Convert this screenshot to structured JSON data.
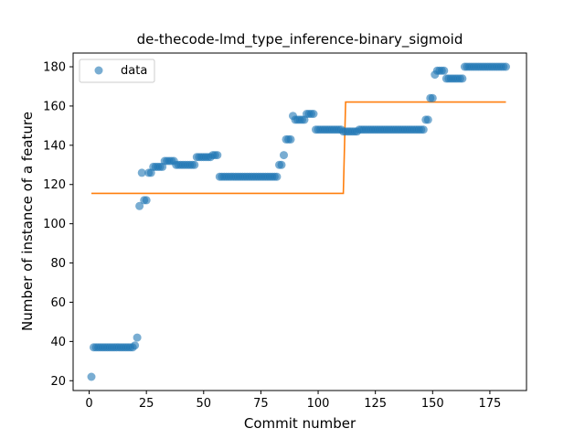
{
  "chart_data": {
    "type": "scatter",
    "title": "de-thecode-lmd_type_inference-binary_sigmoid",
    "xlabel": "Commit number",
    "ylabel": "Number of instance of a feature",
    "xlim": [
      -7,
      191
    ],
    "ylim": [
      15,
      187
    ],
    "xticks": [
      0,
      25,
      50,
      75,
      100,
      125,
      150,
      175
    ],
    "yticks": [
      20,
      40,
      60,
      80,
      100,
      120,
      140,
      160,
      180
    ],
    "grid": false,
    "legend": {
      "placement": "top-left",
      "entries": [
        "data"
      ]
    },
    "colors": {
      "data": "#1f77b4",
      "fit": "#ff7f0e"
    },
    "series": [
      {
        "name": "data",
        "kind": "scatter",
        "segments": [
          {
            "from": 1,
            "to": 1,
            "y": 22
          },
          {
            "from": 2,
            "to": 19,
            "y": 37
          },
          {
            "from": 20,
            "to": 20,
            "y": 38
          },
          {
            "from": 21,
            "to": 21,
            "y": 42
          },
          {
            "from": 22,
            "to": 22,
            "y": 109
          },
          {
            "from": 23,
            "to": 23,
            "y": 126
          },
          {
            "from": 24,
            "to": 25,
            "y": 112
          },
          {
            "from": 26,
            "to": 27,
            "y": 126
          },
          {
            "from": 28,
            "to": 29,
            "y": 129
          },
          {
            "from": 30,
            "to": 32,
            "y": 129
          },
          {
            "from": 33,
            "to": 37,
            "y": 132
          },
          {
            "from": 38,
            "to": 46,
            "y": 130
          },
          {
            "from": 47,
            "to": 53,
            "y": 134
          },
          {
            "from": 54,
            "to": 56,
            "y": 135
          },
          {
            "from": 57,
            "to": 82,
            "y": 124
          },
          {
            "from": 83,
            "to": 84,
            "y": 130
          },
          {
            "from": 85,
            "to": 85,
            "y": 135
          },
          {
            "from": 86,
            "to": 88,
            "y": 143
          },
          {
            "from": 89,
            "to": 89,
            "y": 155
          },
          {
            "from": 90,
            "to": 94,
            "y": 153
          },
          {
            "from": 95,
            "to": 98,
            "y": 156
          },
          {
            "from": 99,
            "to": 110,
            "y": 148
          },
          {
            "from": 111,
            "to": 117,
            "y": 147
          },
          {
            "from": 118,
            "to": 146,
            "y": 148
          },
          {
            "from": 147,
            "to": 148,
            "y": 153
          },
          {
            "from": 149,
            "to": 150,
            "y": 164
          },
          {
            "from": 151,
            "to": 151,
            "y": 176
          },
          {
            "from": 152,
            "to": 155,
            "y": 178
          },
          {
            "from": 156,
            "to": 163,
            "y": 174
          },
          {
            "from": 164,
            "to": 182,
            "y": 180
          }
        ]
      },
      {
        "kind": "line",
        "x": [
          1,
          111,
          112,
          182
        ],
        "y": [
          115.5,
          115.5,
          162,
          162
        ]
      }
    ]
  }
}
